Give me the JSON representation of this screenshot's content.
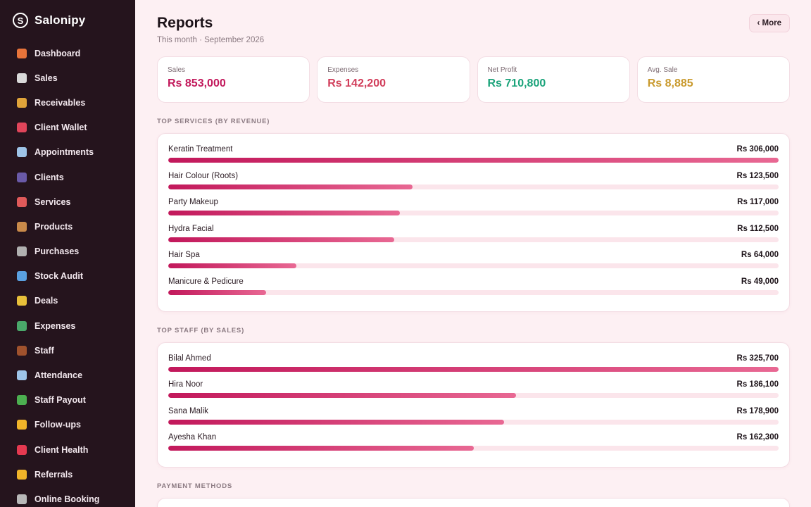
{
  "brand": {
    "name": "Salonipy",
    "logo_icon": "swirl-logo-icon"
  },
  "sidebar": {
    "items": [
      {
        "label": "Dashboard",
        "icon": "house-icon",
        "color": "#e8743a"
      },
      {
        "label": "Sales",
        "icon": "receipt-icon",
        "color": "#d9d9d9"
      },
      {
        "label": "Receivables",
        "icon": "money-bag-icon",
        "color": "#e0a43a"
      },
      {
        "label": "Client Wallet",
        "icon": "wallet-icon",
        "color": "#e0455a"
      },
      {
        "label": "Appointments",
        "icon": "calendar-icon",
        "color": "#9ec4e8"
      },
      {
        "label": "Clients",
        "icon": "people-icon",
        "color": "#6a5aa8"
      },
      {
        "label": "Services",
        "icon": "scissors-icon",
        "color": "#e05a5a"
      },
      {
        "label": "Products",
        "icon": "box-icon",
        "color": "#c98a4a"
      },
      {
        "label": "Purchases",
        "icon": "cart-icon",
        "color": "#b0b0b0"
      },
      {
        "label": "Stock Audit",
        "icon": "magnifier-icon",
        "color": "#5aa0e0"
      },
      {
        "label": "Deals",
        "icon": "tag-icon",
        "color": "#e8c03a"
      },
      {
        "label": "Expenses",
        "icon": "money-wings-icon",
        "color": "#4aa86a"
      },
      {
        "label": "Staff",
        "icon": "briefcase-icon",
        "color": "#a0522d"
      },
      {
        "label": "Attendance",
        "icon": "calendar-check-icon",
        "color": "#9ec4e8"
      },
      {
        "label": "Staff Payout",
        "icon": "cash-icon",
        "color": "#4caf50"
      },
      {
        "label": "Follow-ups",
        "icon": "heart-yellow-icon",
        "color": "#f0b429"
      },
      {
        "label": "Client Health",
        "icon": "heart-red-icon",
        "color": "#e53950"
      },
      {
        "label": "Referrals",
        "icon": "handshake-icon",
        "color": "#f0b429"
      },
      {
        "label": "Online Booking",
        "icon": "link-icon",
        "color": "#b8b8b8"
      }
    ]
  },
  "header": {
    "title": "Reports",
    "subtitle": "This month · September 2026",
    "more_label": "‹ More"
  },
  "stats": [
    {
      "label": "Sales",
      "value": "Rs 853,000",
      "color": "#c2185b"
    },
    {
      "label": "Expenses",
      "value": "Rs 142,200",
      "color": "#d13d5a"
    },
    {
      "label": "Net Profit",
      "value": "Rs 710,800",
      "color": "#1aa37a"
    },
    {
      "label": "Avg. Sale",
      "value": "Rs 8,885",
      "color": "#c99a2e"
    }
  ],
  "top_services": {
    "title": "TOP SERVICES (BY REVENUE)",
    "items": [
      {
        "name": "Keratin Treatment",
        "value": "Rs 306,000",
        "fraction": 1.0
      },
      {
        "name": "Hair Colour (Roots)",
        "value": "Rs 123,500",
        "fraction": 0.4
      },
      {
        "name": "Party Makeup",
        "value": "Rs 117,000",
        "fraction": 0.38
      },
      {
        "name": "Hydra Facial",
        "value": "Rs 112,500",
        "fraction": 0.37
      },
      {
        "name": "Hair Spa",
        "value": "Rs 64,000",
        "fraction": 0.21
      },
      {
        "name": "Manicure & Pedicure",
        "value": "Rs 49,000",
        "fraction": 0.16
      }
    ]
  },
  "top_staff": {
    "title": "TOP STAFF (BY SALES)",
    "items": [
      {
        "name": "Bilal Ahmed",
        "value": "Rs 325,700",
        "fraction": 1.0
      },
      {
        "name": "Hira Noor",
        "value": "Rs 186,100",
        "fraction": 0.57
      },
      {
        "name": "Sana Malik",
        "value": "Rs 178,900",
        "fraction": 0.55
      },
      {
        "name": "Ayesha Khan",
        "value": "Rs 162,300",
        "fraction": 0.5
      }
    ]
  },
  "payment_methods": {
    "title": "PAYMENT METHODS"
  }
}
